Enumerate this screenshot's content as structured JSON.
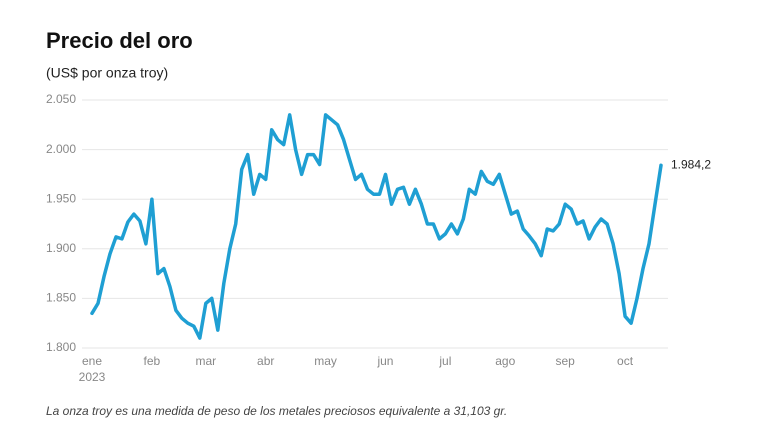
{
  "chart_data": {
    "type": "line",
    "title": "Precio del oro",
    "subtitle": "(US$ por onza troy)",
    "note": "La onza troy es una medida de peso de los metales preciosos equivalente a 31,103 gr.",
    "x_year": "2023",
    "categories": [
      "ene",
      null,
      null,
      null,
      null,
      null,
      null,
      null,
      null,
      null,
      "feb",
      null,
      null,
      null,
      null,
      null,
      null,
      null,
      null,
      "mar",
      null,
      null,
      null,
      null,
      null,
      null,
      null,
      null,
      null,
      "abr",
      null,
      null,
      null,
      null,
      null,
      null,
      null,
      null,
      null,
      "may",
      null,
      null,
      null,
      null,
      null,
      null,
      null,
      null,
      null,
      "jun",
      null,
      null,
      null,
      null,
      null,
      null,
      null,
      null,
      null,
      "jul",
      null,
      null,
      null,
      null,
      null,
      null,
      null,
      null,
      null,
      "ago",
      null,
      null,
      null,
      null,
      null,
      null,
      null,
      null,
      null,
      "sep",
      null,
      null,
      null,
      null,
      null,
      null,
      null,
      null,
      null,
      "oct",
      null,
      null,
      null,
      null,
      null,
      null
    ],
    "series": [
      {
        "name": "Precio del oro",
        "color": "#1f9fd3",
        "values": [
          1835,
          1845,
          1872,
          1895,
          1912,
          1910,
          1927,
          1935,
          1928,
          1905,
          1950,
          1875,
          1880,
          1862,
          1838,
          1830,
          1825,
          1822,
          1810,
          1845,
          1850,
          1818,
          1865,
          1900,
          1925,
          1980,
          1995,
          1955,
          1975,
          1970,
          2020,
          2010,
          2005,
          2035,
          2000,
          1975,
          1995,
          1995,
          1985,
          2035,
          2030,
          2025,
          2010,
          1990,
          1970,
          1975,
          1960,
          1955,
          1955,
          1975,
          1945,
          1960,
          1962,
          1945,
          1960,
          1945,
          1925,
          1925,
          1910,
          1915,
          1925,
          1915,
          1930,
          1960,
          1955,
          1978,
          1968,
          1965,
          1975,
          1955,
          1935,
          1938,
          1920,
          1913,
          1905,
          1893,
          1920,
          1918,
          1925,
          1945,
          1940,
          1925,
          1928,
          1910,
          1922,
          1930,
          1925,
          1905,
          1875,
          1832,
          1825,
          1850,
          1880,
          1905,
          1945,
          1984.2
        ],
        "value_labels": [
          null,
          null,
          null,
          null,
          null,
          null,
          null,
          null,
          null,
          null,
          null,
          null,
          null,
          null,
          null,
          null,
          null,
          null,
          null,
          null,
          null,
          null,
          null,
          null,
          null,
          null,
          null,
          null,
          null,
          null,
          null,
          null,
          null,
          null,
          null,
          null,
          null,
          null,
          null,
          null,
          null,
          null,
          null,
          null,
          null,
          null,
          null,
          null,
          null,
          null,
          null,
          null,
          null,
          null,
          null,
          null,
          null,
          null,
          null,
          null,
          null,
          null,
          null,
          null,
          null,
          null,
          null,
          null,
          null,
          null,
          null,
          null,
          null,
          null,
          null,
          null,
          null,
          null,
          null,
          null,
          null,
          null,
          null,
          null,
          null,
          null,
          null,
          null,
          null,
          null,
          null,
          null,
          null,
          null,
          null,
          "1.984,2"
        ]
      }
    ],
    "ylim": [
      1800,
      2050
    ],
    "yticks": [
      {
        "value": 1800,
        "label": "1.800"
      },
      {
        "value": 1850,
        "label": "1.850"
      },
      {
        "value": 1900,
        "label": "1.900"
      },
      {
        "value": 1950,
        "label": "1.950"
      },
      {
        "value": 2000,
        "label": "2.000"
      },
      {
        "value": 2050,
        "label": "2.050"
      }
    ],
    "grid": true
  }
}
